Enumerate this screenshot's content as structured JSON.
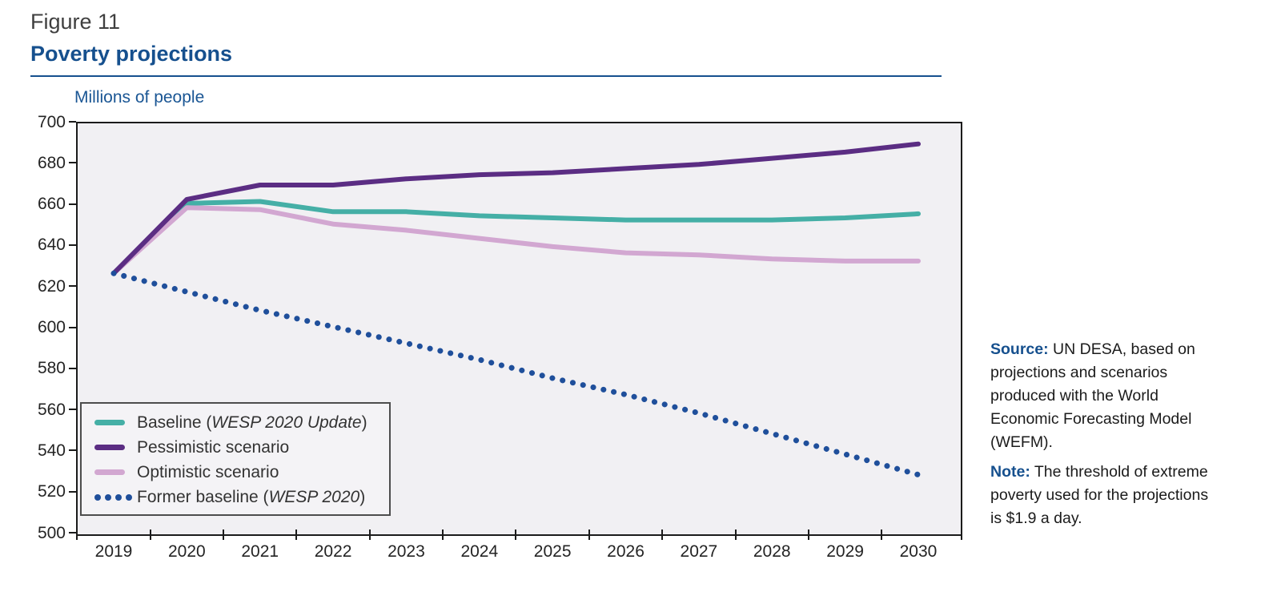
{
  "figure": {
    "label": "Figure 11",
    "title": "Poverty projections"
  },
  "chart_data": {
    "type": "line",
    "title": "Poverty projections",
    "ylabel": "Millions of people",
    "x": [
      2019,
      2020,
      2021,
      2022,
      2023,
      2024,
      2025,
      2026,
      2027,
      2028,
      2029,
      2030
    ],
    "ylim": [
      500,
      700
    ],
    "ytick_step": 20,
    "grid": false,
    "legend_position": "inside-bottom-left",
    "plot_background": "#F1F0F3",
    "series": [
      {
        "id": "baseline",
        "name": "Baseline (WESP 2020 Update)",
        "label_parts": [
          {
            "t": "Baseline ("
          },
          {
            "t": "WESP 2020 Update",
            "i": true
          },
          {
            "t": ")"
          }
        ],
        "color": "#45AFA6",
        "style": "solid",
        "z": 1,
        "values": [
          627,
          661,
          662,
          657,
          657,
          655,
          654,
          653,
          653,
          653,
          654,
          656
        ]
      },
      {
        "id": "pessimistic",
        "name": "Pessimistic scenario",
        "label_parts": [
          {
            "t": "Pessimistic scenario"
          }
        ],
        "color": "#5B2D83",
        "style": "solid",
        "z": 3,
        "values": [
          627,
          663,
          670,
          670,
          673,
          675,
          676,
          678,
          680,
          683,
          686,
          690
        ]
      },
      {
        "id": "optimistic",
        "name": "Optimistic scenario",
        "label_parts": [
          {
            "t": "Optimistic scenario"
          }
        ],
        "color": "#D2A7D1",
        "style": "solid",
        "z": 2,
        "values": [
          627,
          659,
          658,
          651,
          648,
          644,
          640,
          637,
          636,
          634,
          633,
          633
        ]
      },
      {
        "id": "former-baseline",
        "name": "Former baseline (WESP 2020)",
        "label_parts": [
          {
            "t": "Former baseline ("
          },
          {
            "t": "WESP 2020",
            "i": true
          },
          {
            "t": ")"
          }
        ],
        "color": "#1F4F9B",
        "style": "dotted",
        "z": 4,
        "values": [
          627,
          618,
          609,
          601,
          593,
          585,
          576,
          568,
          559,
          549,
          539,
          529
        ]
      }
    ]
  },
  "notes": {
    "source_label": "Source:",
    "source_text": " UN DESA, based on projections and scenarios produced with the World Economic Forecasting Model (WEFM).",
    "note_label": "Note:",
    "note_text": " The threshold of extreme poverty used for the projections is $1.9 a day."
  }
}
